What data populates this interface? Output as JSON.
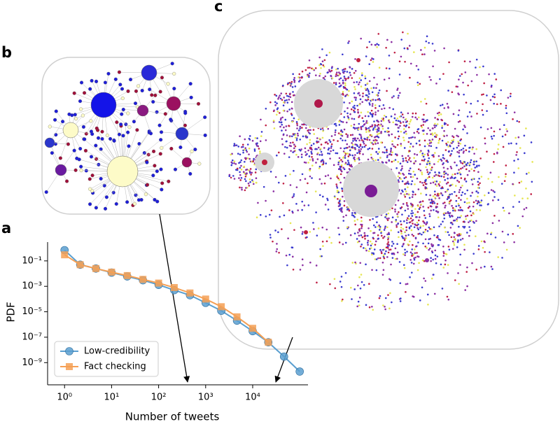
{
  "panel_labels": [
    "a",
    "b",
    "c"
  ],
  "chart_data": {
    "type": "line",
    "x_label": "Number of tweets",
    "y_label": "PDF",
    "log_x": true,
    "log_y": true,
    "xlim": [
      0.5,
      150000
    ],
    "ylim": [
      3e-11,
      3
    ],
    "xticks": [
      {
        "value": 1,
        "label": "10⁰"
      },
      {
        "value": 10,
        "label": "10¹"
      },
      {
        "value": 100,
        "label": "10²"
      },
      {
        "value": 1000,
        "label": "10³"
      },
      {
        "value": 10000,
        "label": "10⁴"
      }
    ],
    "yticks": [
      {
        "value": 1e-09,
        "label": "10⁻⁹"
      },
      {
        "value": 1e-07,
        "label": "10⁻⁷"
      },
      {
        "value": 1e-05,
        "label": "10⁻⁵"
      },
      {
        "value": 0.001,
        "label": "10⁻³"
      },
      {
        "value": 0.1,
        "label": "10⁻¹"
      }
    ],
    "legend_position": "lower left",
    "series": [
      {
        "name": "Low-credibility",
        "color": "#5a9fd0",
        "marker": "circle",
        "x": [
          1,
          2.15,
          4.64,
          10,
          21.5,
          46.4,
          100,
          215,
          464,
          1000,
          2150,
          4640,
          10000,
          21500,
          46400,
          100000
        ],
        "values": [
          0.7,
          0.05,
          0.025,
          0.012,
          0.006,
          0.003,
          0.0013,
          0.0005,
          0.0002,
          5e-05,
          1.2e-05,
          2e-06,
          3e-07,
          4e-08,
          3e-09,
          2e-10
        ]
      },
      {
        "name": "Fact checking",
        "color": "#f5a055",
        "marker": "square",
        "x": [
          1,
          2.15,
          4.64,
          10,
          21.5,
          46.4,
          100,
          215,
          464,
          1000,
          2150,
          4640,
          10000,
          21500
        ],
        "values": [
          0.3,
          0.05,
          0.025,
          0.013,
          0.007,
          0.0035,
          0.0018,
          0.0008,
          0.0003,
          0.0001,
          2.5e-05,
          4e-06,
          5e-07,
          4e-08
        ]
      }
    ]
  }
}
